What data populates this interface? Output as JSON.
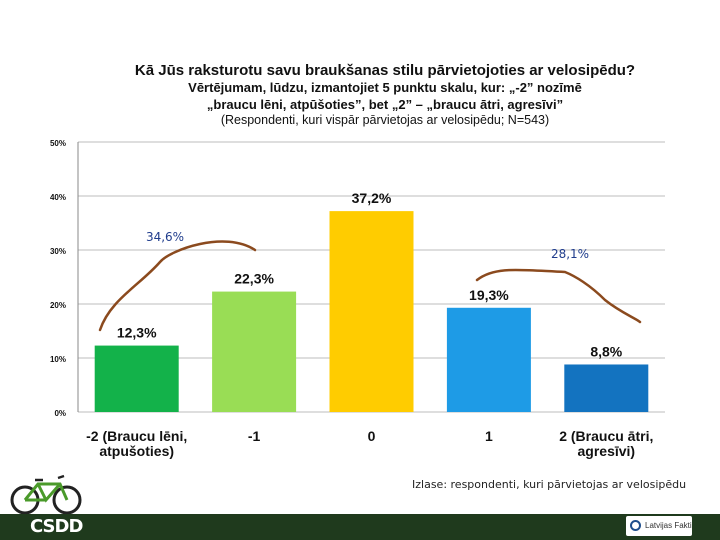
{
  "header": {
    "title": "Kā Jūs raksturotu savu braukšanas stilu pārvietojoties ar velosipēdu?",
    "line2": "Vērtējumam, lūdzu, izmantojiet  5 punktu skalu, kur: „-2” nozīmē",
    "line3": "„braucu lēni, atpūšoties”, bet „2” – „braucu ātri, agresīvi”",
    "line4": "(Respondenti, kuri vispār pārvietojas ar velosipēdu; N=543)"
  },
  "chart_data": {
    "type": "bar",
    "categories": [
      "-2 (Braucu lēni, atpušoties)",
      "-1",
      "0",
      "1",
      "2 (Braucu ātri, agresīvi)"
    ],
    "category_lines": [
      [
        "-2 (Braucu lēni,",
        "atpušoties)"
      ],
      [
        "-1"
      ],
      [
        "0"
      ],
      [
        "1"
      ],
      [
        "2 (Braucu ātri,",
        "agresīvi)"
      ]
    ],
    "values": [
      12.3,
      22.3,
      37.2,
      19.3,
      8.8
    ],
    "value_labels": [
      "12,3%",
      "22,3%",
      "37,2%",
      "19,3%",
      "8,8%"
    ],
    "colors": [
      "#13b24a",
      "#99dd55",
      "#ffcc00",
      "#1e9be6",
      "#1373c0"
    ],
    "ylim": [
      0,
      50
    ],
    "yticks": [
      "0%",
      "10%",
      "20%",
      "30%",
      "40%",
      "50%"
    ],
    "grid": true,
    "annotations": [
      {
        "text": "34,6%",
        "color": "#1f3c8c"
      },
      {
        "text": "28,1%",
        "color": "#1f3c8c"
      }
    ]
  },
  "note": "Izlase: respondenti, kuri pārvietojas ar velosipēdu",
  "footer": {
    "logo_left": "CSDD",
    "logo_right": "Latvijas Fakti"
  }
}
